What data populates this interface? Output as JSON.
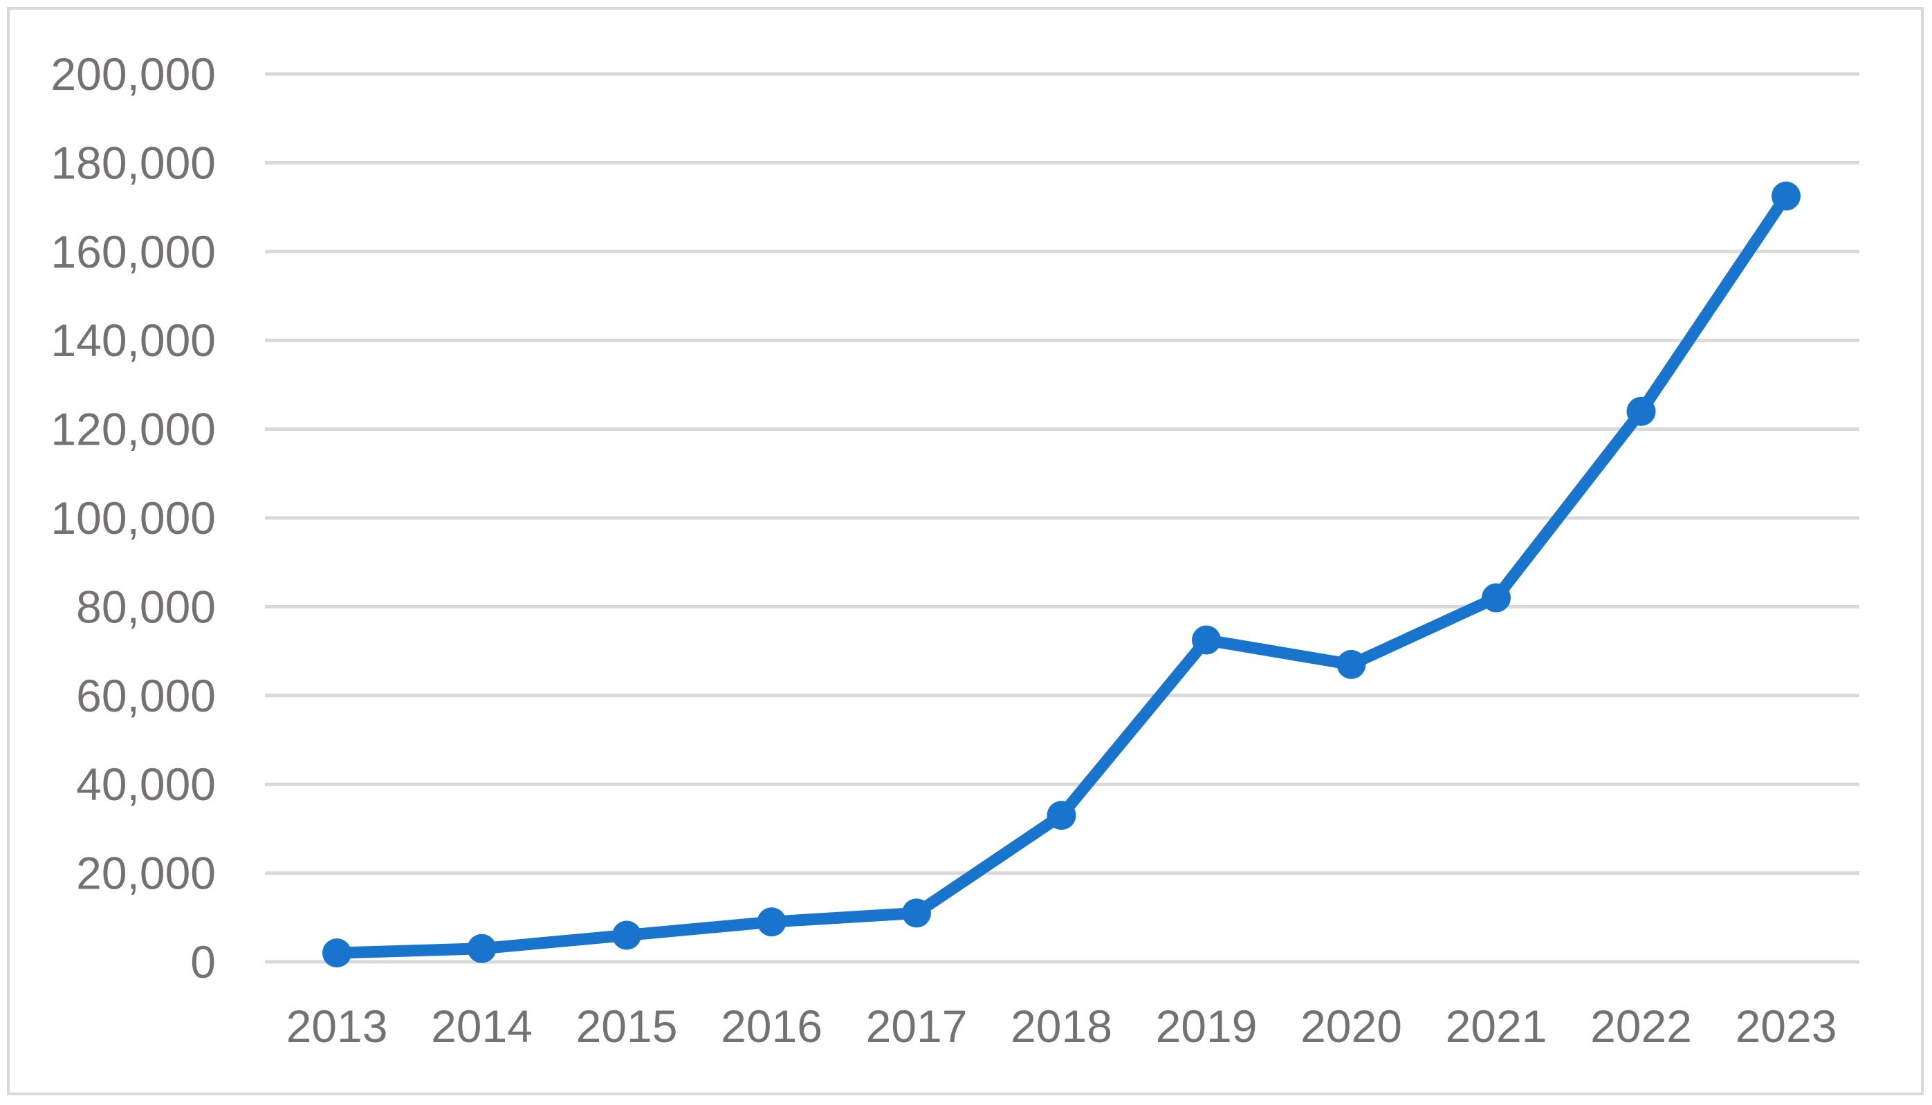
{
  "chart_data": {
    "type": "line",
    "title": "",
    "xlabel": "",
    "ylabel": "",
    "categories": [
      "2013",
      "2014",
      "2015",
      "2016",
      "2017",
      "2018",
      "2019",
      "2020",
      "2021",
      "2022",
      "2023"
    ],
    "series": [
      {
        "values": [
          2000,
          3000,
          6000,
          9000,
          11000,
          33000,
          72500,
          67000,
          82000,
          124000,
          172500
        ],
        "color": "#1874cd"
      }
    ],
    "ylim": [
      0,
      200000
    ],
    "yticks": [
      0,
      20000,
      40000,
      60000,
      80000,
      100000,
      120000,
      140000,
      160000,
      180000,
      200000
    ],
    "ytick_labels": [
      "0",
      "20,000",
      "40,000",
      "60,000",
      "80,000",
      "100,000",
      "120,000",
      "140,000",
      "160,000",
      "180,000",
      "200,000"
    ],
    "grid": true,
    "legend": "none",
    "markers": "circle",
    "colors": {
      "line": "#1874cd",
      "grid": "#d9d9d9",
      "tick_text": "#767171",
      "frame": "#d9d9d9"
    }
  }
}
